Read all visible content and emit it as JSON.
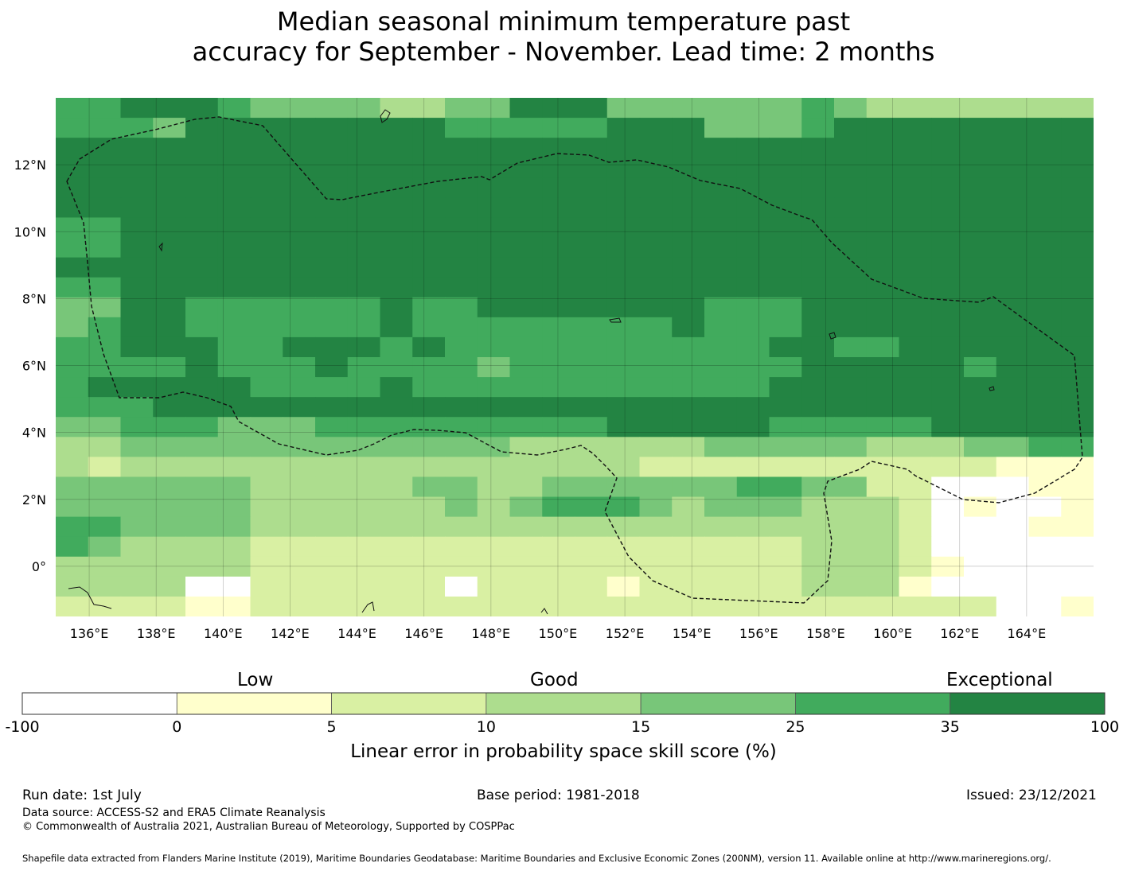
{
  "title": {
    "line1": "Median seasonal minimum temperature past",
    "line2": "accuracy for September - November. Lead time: 2 months"
  },
  "map": {
    "lon_ticks": [
      "136°E",
      "138°E",
      "140°E",
      "142°E",
      "144°E",
      "146°E",
      "148°E",
      "150°E",
      "152°E",
      "154°E",
      "156°E",
      "158°E",
      "160°E",
      "162°E",
      "164°E"
    ],
    "lat_ticks": [
      "12°N",
      "10°N",
      "8°N",
      "6°N",
      "4°N",
      "2°N",
      "0°"
    ],
    "lon_range": [
      135,
      166
    ],
    "lat_range": [
      -1.5,
      14
    ],
    "color_classes": [
      "#ffffff",
      "#ffffcc",
      "#d9f0a3",
      "#addd8e",
      "#78c679",
      "#41ab5d",
      "#238443"
    ],
    "grid_values": [
      "55666544443344666444444543333333",
      "55546666666655555666444566666666",
      "66666666666666666666666666666666",
      "66666666666666666666666666666666",
      "66666666666666666666666666666666",
      "66666666666666666666666666666666",
      "55666666666666666666666666666666",
      "55666666666666666666666666666666",
      "66666666666666666666666666666666",
      "55666666666666666666666666666666",
      "44665555556556666666555666666666",
      "45665555556555555556555666666666",
      "55666556665655555555556655666666",
      "55556555655554555555555666665666",
      "56666655556555555555556666666666",
      "55566666666666666666666666666666",
      "44555444555555555666665555566666",
      "33444444444444333333444443334455",
      "32333333333333333322222222222111",
      "44444433333443344444455442200011",
      "44444433333343455543444333201001",
      "55444433333333333333333333200011",
      "54333322222222222222222333200000",
      "33333322222222222222222333210000",
      "33330022222202222122222333100000",
      "22221122222222222222222222222001"
    ]
  },
  "colorbar": {
    "categories": [
      "Low",
      "Good",
      "Exceptional"
    ],
    "ticks": [
      "-100",
      "0",
      "5",
      "10",
      "15",
      "25",
      "35",
      "100"
    ],
    "label": "Linear error in probability space skill score (%)"
  },
  "footer": {
    "run_date": "Run date: 1st July",
    "base_period": "Base period: 1981-2018",
    "issued": "Issued: 23/12/2021",
    "data_source": "Data source: ACCESS-S2 and ERA5 Climate Reanalysis",
    "copyright": "© Commonwealth of Australia 2021, Australian Bureau of Meteorology, Supported by COSPPac",
    "shapefile": "Shapefile data extracted from Flanders Marine Institute (2019), Maritime Boundaries Geodatabase: Maritime Boundaries and Exclusive Economic Zones (200NM), version 11. Available online at http://www.marineregions.org/."
  }
}
